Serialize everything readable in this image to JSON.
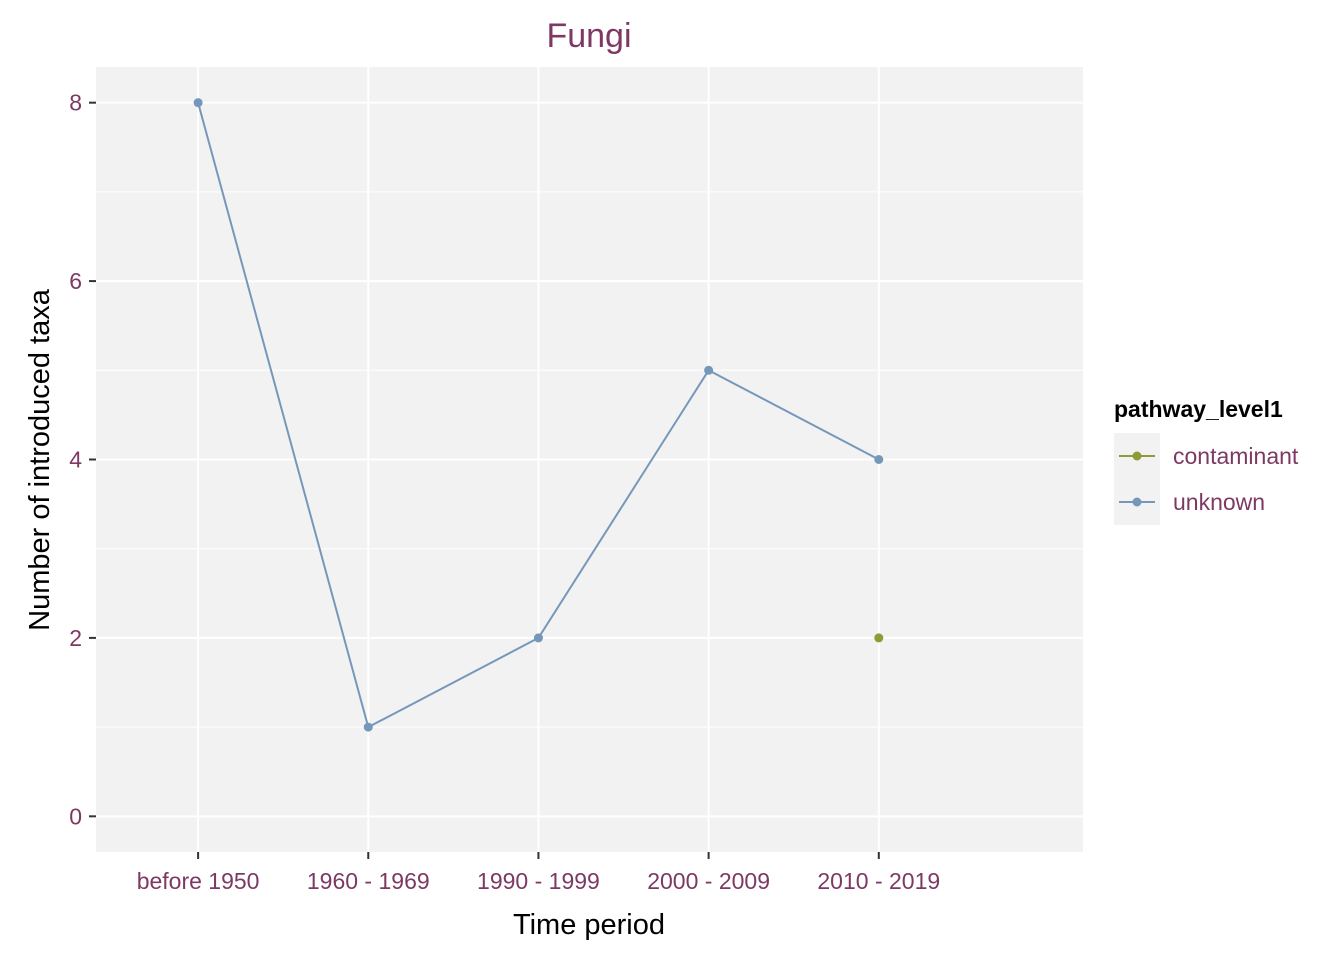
{
  "chart_data": {
    "type": "line",
    "title": "Fungi",
    "xlabel": "Time period",
    "ylabel": "Number of introduced taxa",
    "categories": [
      "before 1950",
      "1960 - 1969",
      "1990 - 1999",
      "2000 - 2009",
      "2010 - 2019"
    ],
    "ylim": [
      -0.4,
      8.4
    ],
    "yticks": [
      0,
      2,
      4,
      6,
      8
    ],
    "grid": true,
    "legend": {
      "title": "pathway_level1",
      "position": "right"
    },
    "series": [
      {
        "name": "contaminant",
        "color": "#8E9B36",
        "values": [
          null,
          null,
          null,
          null,
          2
        ]
      },
      {
        "name": "unknown",
        "color": "#7598BA",
        "values": [
          8,
          1,
          2,
          5,
          4
        ]
      }
    ]
  },
  "colors": {
    "accent_text": "#7D3963",
    "panel_background": "#F2F2F2",
    "grid": "#FFFFFF"
  }
}
